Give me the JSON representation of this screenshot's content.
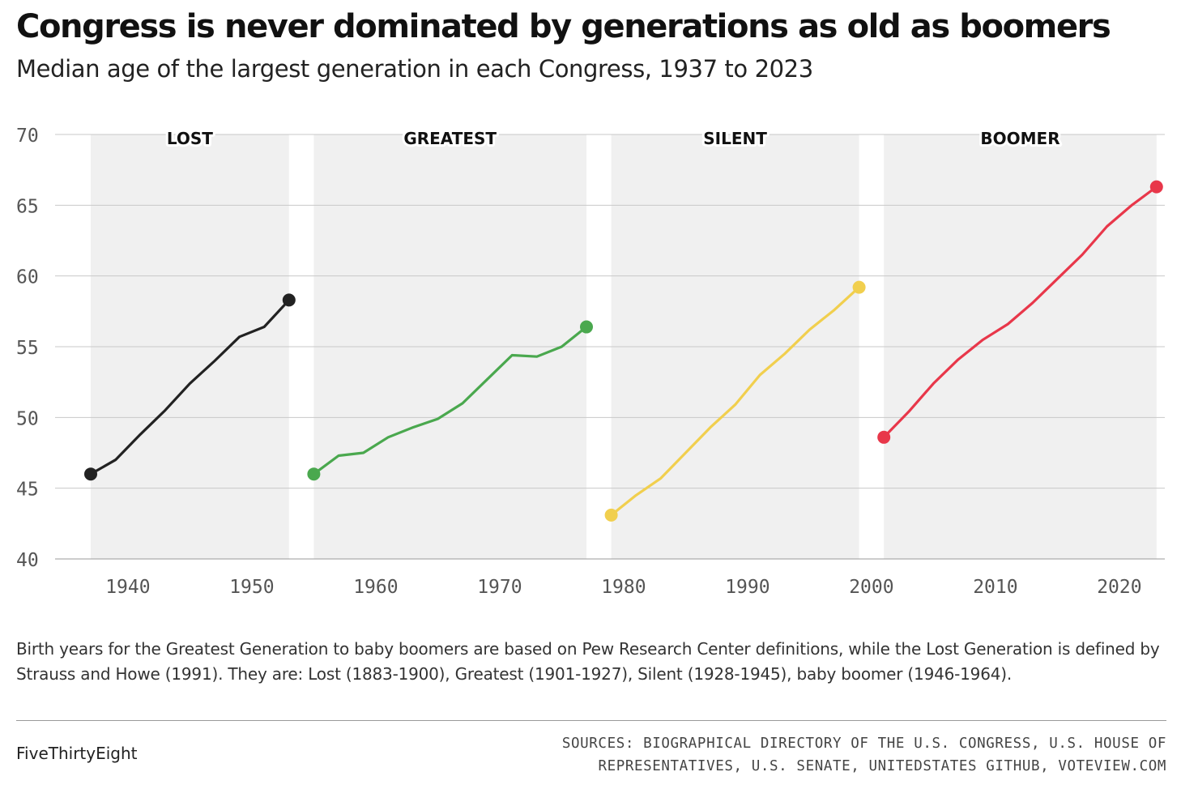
{
  "title": "Congress is never dominated by generations as old as boomers",
  "subtitle": "Median age of the largest generation in each Congress, 1937 to 2023",
  "note": "Birth years for the Greatest Generation to baby boomers are based on Pew Research Center definitions, while the Lost Generation is defined by Strauss and Howe (1991). They are: Lost (1883-1900), Greatest (1901-1927), Silent (1928-1945), baby boomer (1946-1964).",
  "brand": "FiveThirtyEight",
  "sources_line1": "SOURCES: BIOGRAPHICAL DIRECTORY OF THE U.S. CONGRESS, U.S. HOUSE OF",
  "sources_line2": "REPRESENTATIVES, U.S. SENATE, UNITEDSTATES GITHUB, VOTEVIEW.COM",
  "chart_data": {
    "type": "line",
    "title": "Congress is never dominated by generations as old as boomers",
    "subtitle": "Median age of the largest generation in each Congress, 1937 to 2023",
    "xlabel": "",
    "ylabel": "",
    "xlim": [
      1934,
      2024
    ],
    "ylim": [
      40,
      70
    ],
    "x_ticks": [
      1940,
      1950,
      1960,
      1970,
      1980,
      1990,
      2000,
      2010,
      2020
    ],
    "y_ticks": [
      40,
      45,
      50,
      55,
      60,
      65,
      70
    ],
    "grid": true,
    "legend": "none",
    "series": [
      {
        "name": "LOST",
        "color": "#222222",
        "span": [
          1937,
          1953
        ],
        "x": [
          1937,
          1939,
          1941,
          1943,
          1945,
          1947,
          1949,
          1951,
          1953
        ],
        "y": [
          46.0,
          47.0,
          48.8,
          50.5,
          52.4,
          54.0,
          55.7,
          56.4,
          58.3
        ]
      },
      {
        "name": "GREATEST",
        "color": "#4aa84e",
        "span": [
          1955,
          1977
        ],
        "x": [
          1955,
          1957,
          1959,
          1961,
          1963,
          1965,
          1967,
          1969,
          1971,
          1973,
          1975,
          1977
        ],
        "y": [
          46.0,
          47.3,
          47.5,
          48.6,
          49.3,
          49.9,
          51.0,
          52.7,
          54.4,
          54.3,
          55.0,
          56.4
        ]
      },
      {
        "name": "SILENT",
        "color": "#f1cf4e",
        "span": [
          1979,
          1999
        ],
        "x": [
          1979,
          1981,
          1983,
          1985,
          1987,
          1989,
          1991,
          1993,
          1995,
          1997,
          1999
        ],
        "y": [
          43.1,
          44.5,
          45.7,
          47.5,
          49.3,
          50.9,
          53.0,
          54.5,
          56.2,
          57.6,
          59.2
        ]
      },
      {
        "name": "BOOMER",
        "color": "#e8374a",
        "span": [
          2001,
          2023
        ],
        "x": [
          2001,
          2003,
          2005,
          2007,
          2009,
          2011,
          2013,
          2015,
          2017,
          2019,
          2021,
          2023
        ],
        "y": [
          48.6,
          50.4,
          52.4,
          54.1,
          55.5,
          56.6,
          58.1,
          59.8,
          61.5,
          63.5,
          65.0,
          66.3
        ]
      }
    ]
  }
}
